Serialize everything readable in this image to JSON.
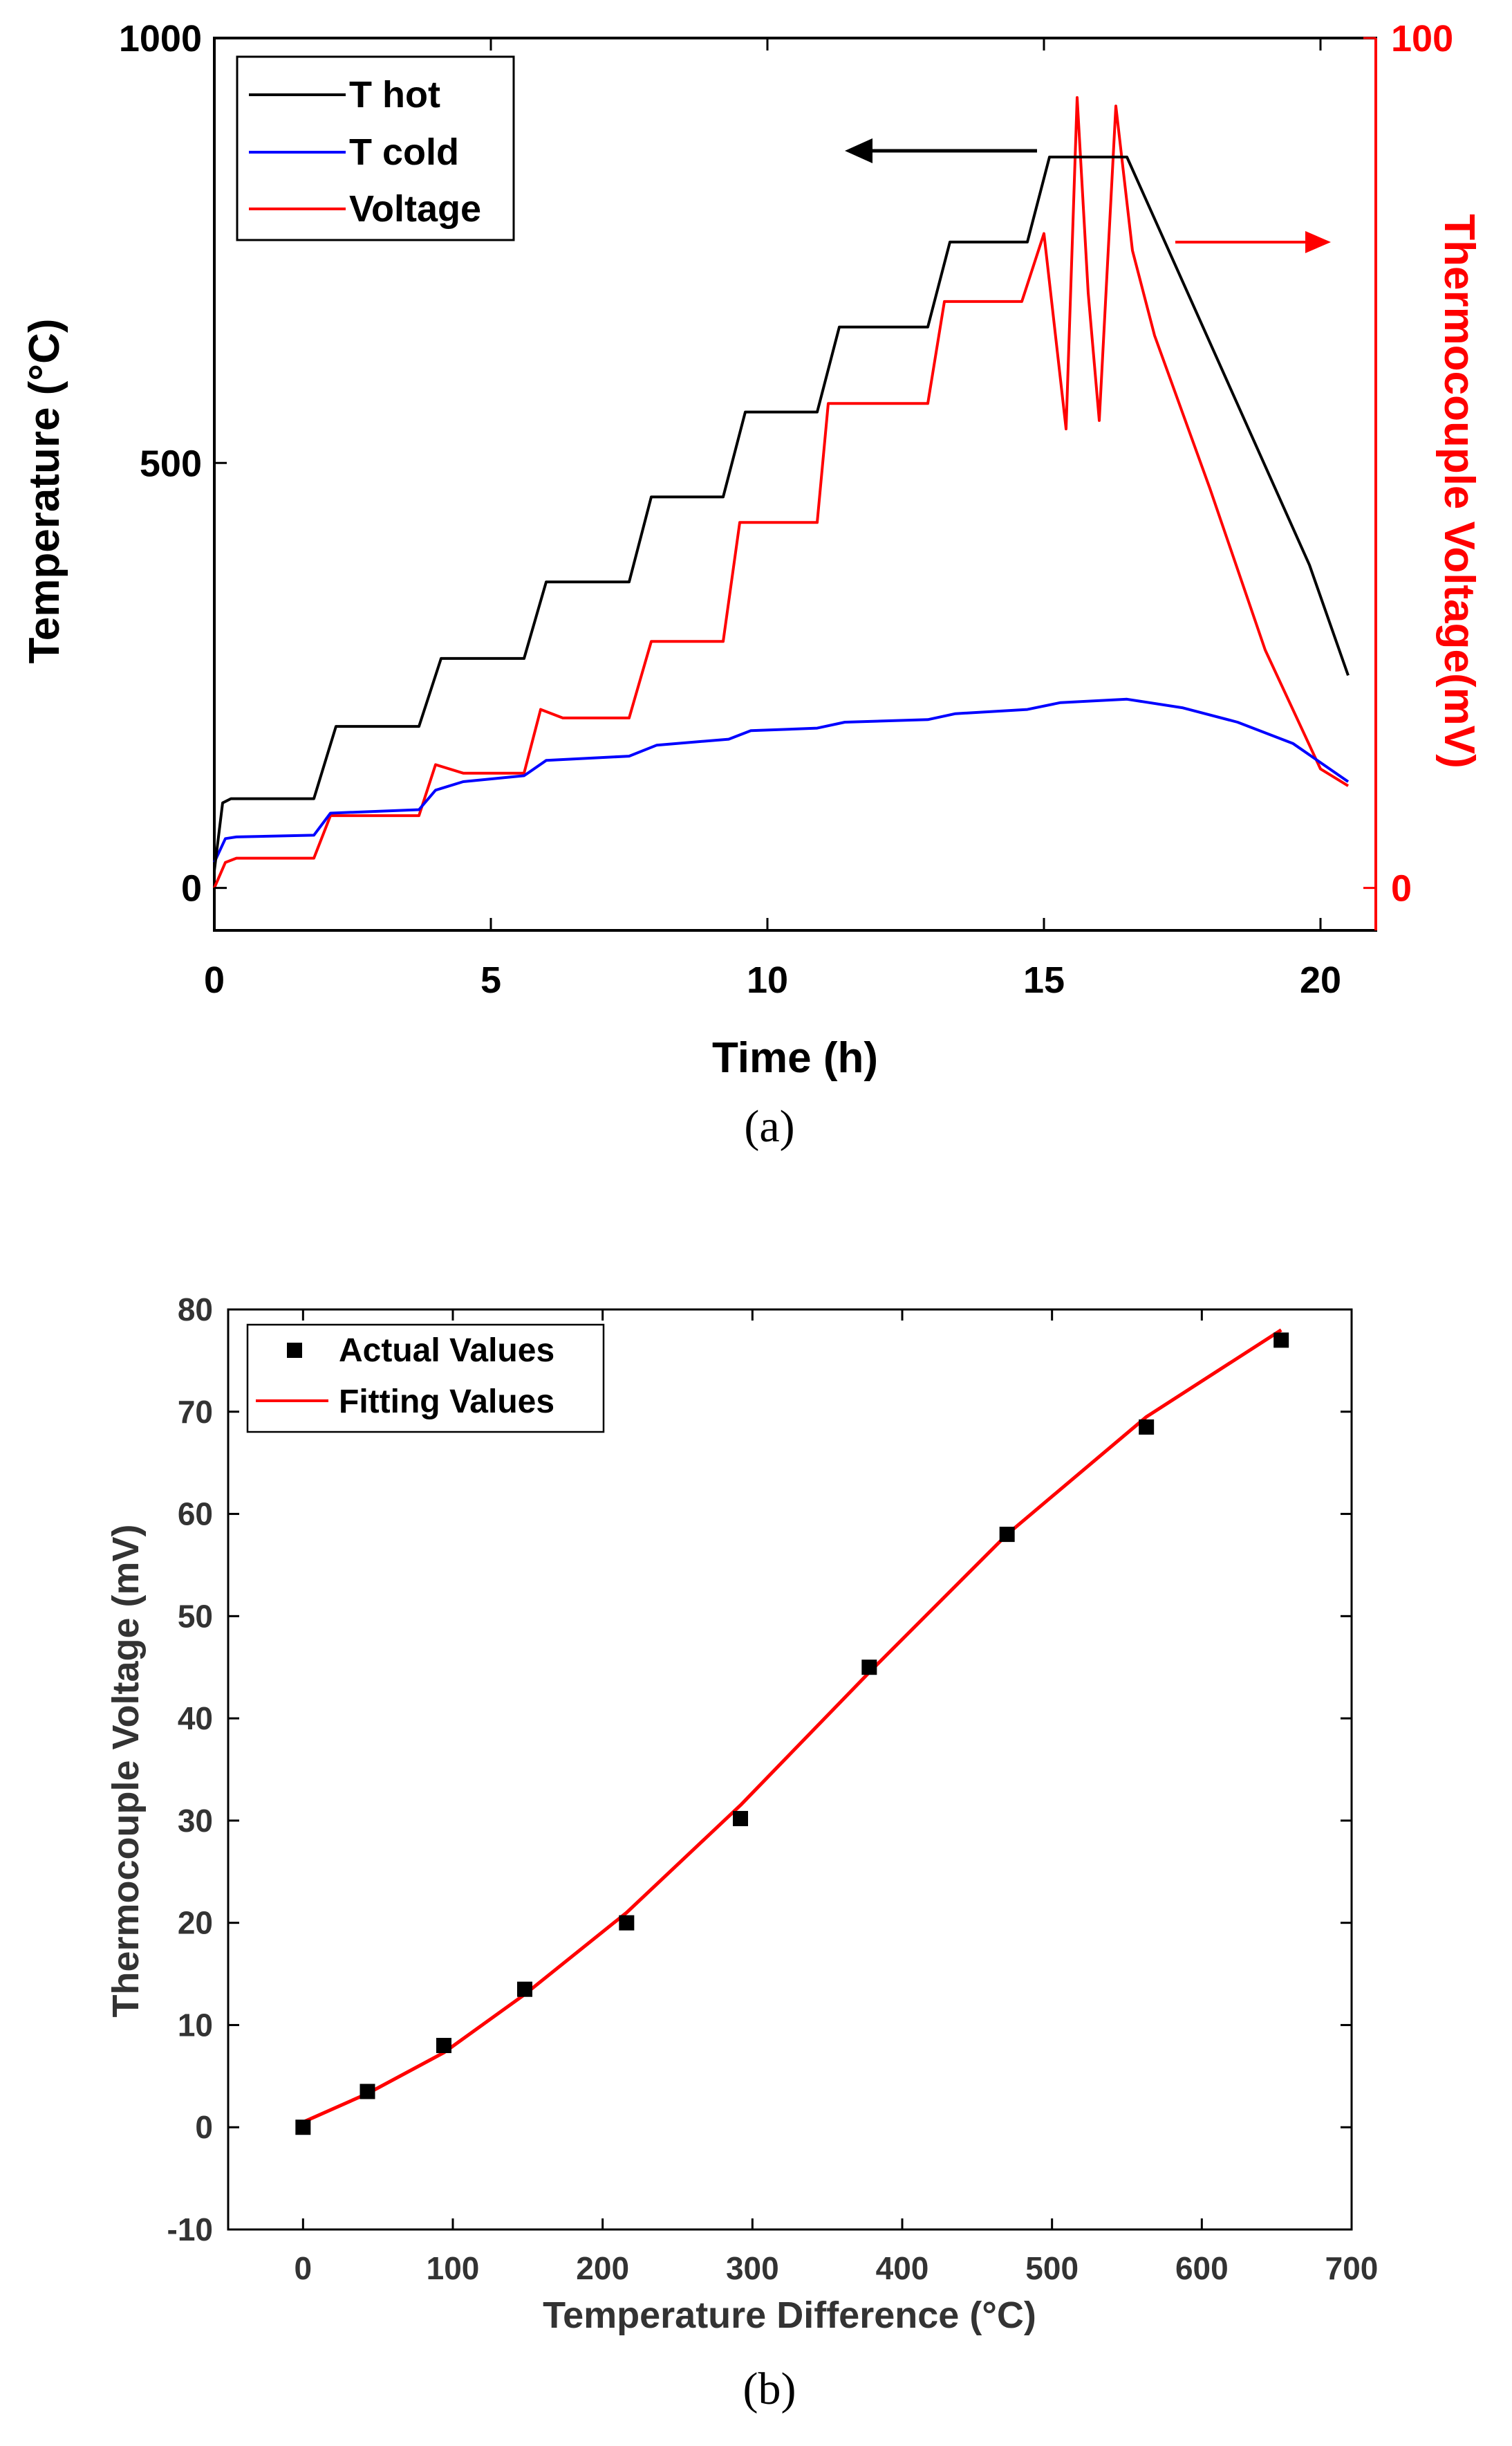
{
  "chart_data": [
    {
      "type": "line",
      "caption": "(a)",
      "xlabel": "Time (h)",
      "ylabel_left": "Temperature (°C)",
      "ylabel_right": "Thermocouple Voltage(mV)",
      "xlim": [
        0,
        21
      ],
      "ylim_left": [
        -50,
        1000
      ],
      "ylim_right": [
        -5,
        100
      ],
      "xticks": [
        "0",
        "5",
        "10",
        "15",
        "20"
      ],
      "yticks_left": [
        "0",
        "500",
        "1000"
      ],
      "yticks_right": [
        "0",
        "100"
      ],
      "legend": [
        "T hot",
        "T cold",
        "Voltage"
      ],
      "legend_position": "top-left",
      "colors": {
        "t_hot": "#000000",
        "t_cold": "#0000ff",
        "voltage": "#ff0000"
      },
      "series": [
        {
          "name": "T hot",
          "axis": "left",
          "x": [
            0,
            0.15,
            0.3,
            1.8,
            2.2,
            3.7,
            4.1,
            5.6,
            6.0,
            7.5,
            7.9,
            9.2,
            9.6,
            10.9,
            11.3,
            12.9,
            13.3,
            14.7,
            15.1,
            16.5,
            19.8,
            20.5
          ],
          "y": [
            20,
            100,
            105,
            105,
            190,
            190,
            270,
            270,
            360,
            360,
            460,
            460,
            560,
            560,
            660,
            660,
            760,
            760,
            860,
            860,
            380,
            250
          ]
        },
        {
          "name": "T cold",
          "axis": "left",
          "x": [
            0,
            0.2,
            0.4,
            1.8,
            2.1,
            3.7,
            4.0,
            4.5,
            5.6,
            6.0,
            7.5,
            8.0,
            9.3,
            9.7,
            10.9,
            11.4,
            12.9,
            13.4,
            14.7,
            15.3,
            16.5,
            17.5,
            18.5,
            19.5,
            20.5
          ],
          "y": [
            30,
            58,
            60,
            62,
            88,
            92,
            115,
            125,
            132,
            150,
            155,
            168,
            175,
            185,
            188,
            195,
            198,
            205,
            210,
            218,
            222,
            212,
            195,
            170,
            125
          ]
        },
        {
          "name": "Voltage",
          "axis": "right",
          "x": [
            0,
            0.2,
            0.4,
            1.8,
            2.1,
            3.7,
            4.0,
            4.5,
            5.6,
            5.9,
            6.3,
            7.5,
            7.9,
            9.2,
            9.5,
            10.9,
            11.1,
            12.9,
            13.2,
            14.6,
            15.0,
            15.4,
            15.6,
            15.8,
            16.0,
            16.3,
            16.6,
            17.0,
            18.0,
            19.0,
            20.0,
            20.5
          ],
          "y": [
            0,
            3,
            3.5,
            3.5,
            8.5,
            8.5,
            14.5,
            13.5,
            13.5,
            21,
            20,
            20,
            29,
            29,
            43,
            43,
            57,
            57,
            69,
            69,
            77,
            54,
            93,
            70,
            55,
            92,
            75,
            65,
            47,
            28,
            14,
            12
          ]
        }
      ],
      "arrows": [
        {
          "points_to": "left axis",
          "color": "#000000"
        },
        {
          "points_to": "right axis",
          "color": "#ff0000"
        }
      ]
    },
    {
      "type": "scatter",
      "caption": "(b)",
      "xlabel": "Temperature Difference (°C)",
      "ylabel": "Thermocouple Voltage (mV)",
      "xlim": [
        -50,
        700
      ],
      "ylim": [
        -10,
        80
      ],
      "xticks": [
        "0",
        "100",
        "200",
        "300",
        "400",
        "500",
        "600",
        "700"
      ],
      "yticks": [
        "-10",
        "0",
        "10",
        "20",
        "30",
        "40",
        "50",
        "60",
        "70",
        "80"
      ],
      "legend": [
        "Actual Values",
        "Fitting Values"
      ],
      "legend_position": "top-left",
      "colors": {
        "actual": "#000000",
        "fit": "#ff0000"
      },
      "series": [
        {
          "name": "Actual Values",
          "marker": "square",
          "x": [
            0,
            43,
            94,
            148,
            216,
            292,
            378,
            470,
            563,
            653
          ],
          "y": [
            0,
            3.5,
            8,
            13.5,
            20,
            30.2,
            45,
            58,
            68.5,
            77
          ]
        },
        {
          "name": "Fitting Values",
          "marker": "line",
          "x": [
            0,
            43,
            94,
            148,
            216,
            292,
            378,
            470,
            563,
            653
          ],
          "y": [
            0.5,
            3.3,
            7.3,
            13.0,
            21.0,
            31.5,
            44.5,
            58.0,
            69.5,
            78.0
          ]
        }
      ]
    }
  ]
}
